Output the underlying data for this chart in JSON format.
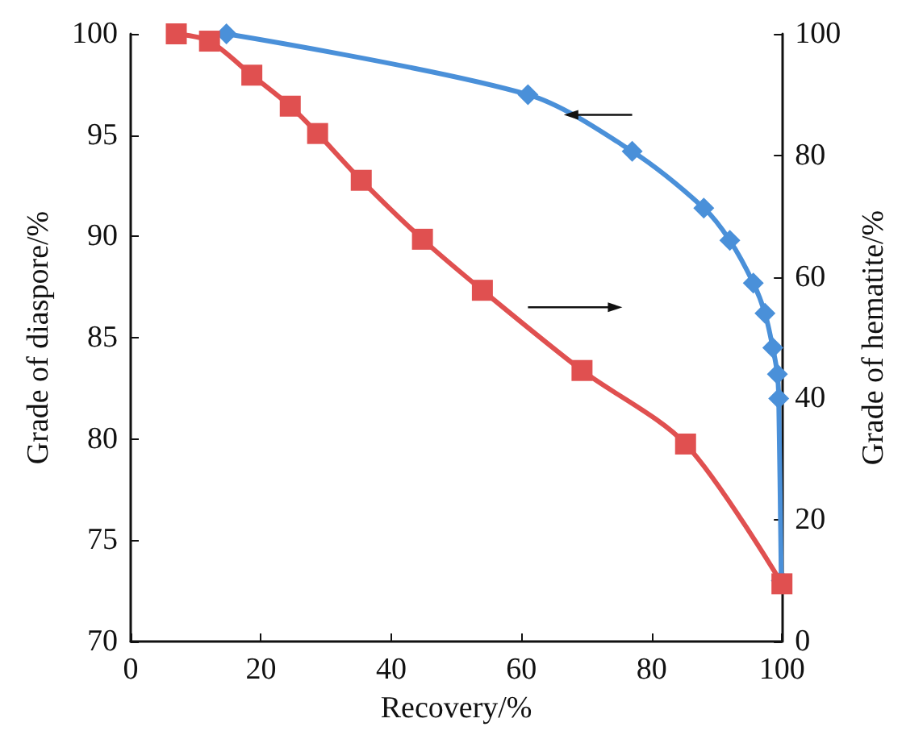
{
  "chart_data": {
    "type": "line",
    "xlabel": "Recovery/%",
    "ylabel": "Grade of diaspore/%",
    "y2label": "Grade of hematite/%",
    "xlim": [
      0,
      100
    ],
    "xticks": [
      0,
      20,
      40,
      60,
      80,
      100
    ],
    "ylim": [
      70,
      100
    ],
    "yticks": [
      70,
      75,
      80,
      85,
      90,
      95,
      100
    ],
    "y2lim": [
      0,
      100
    ],
    "y2ticks": [
      0,
      20,
      40,
      60,
      80,
      100
    ],
    "line_style": "solid",
    "series": [
      {
        "color": "#4a90d9",
        "marker": "diamond",
        "x": [
          14.7,
          61,
          77,
          88,
          92,
          95.6,
          97.4,
          98.6,
          99.3,
          99.5,
          99.9
        ],
        "values": [
          100,
          97,
          94.2,
          91.4,
          89.8,
          87.7,
          86.2,
          84.5,
          83.2,
          82,
          73
        ]
      },
      {
        "color": "#e05050",
        "marker": "square",
        "axis": "y2",
        "x": [
          7,
          12.1,
          18.6,
          24.5,
          28.7,
          35.4,
          44.8,
          54,
          69.3,
          85.2,
          100
        ],
        "values": [
          100,
          98.8,
          93.2,
          88.1,
          83.6,
          75.9,
          66.2,
          57.8,
          44.6,
          32.5,
          9.5
        ]
      }
    ]
  }
}
